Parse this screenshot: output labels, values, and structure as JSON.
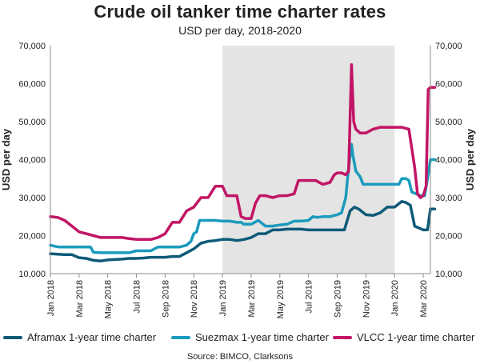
{
  "header": {
    "title": "Crude oil tanker time charter rates",
    "subtitle": "USD per day, 2018-2020"
  },
  "source": "Source: BIMCO, Clarksons",
  "chart_data": {
    "type": "line",
    "title": "Crude oil tanker time charter rates",
    "subtitle": "USD per day, 2018-2020",
    "ylabel_left": "USD per day",
    "ylabel_right": "USD per day",
    "ylim": [
      10000,
      70000
    ],
    "yticks": [
      10000,
      20000,
      30000,
      40000,
      50000,
      60000,
      70000
    ],
    "ytick_labels": [
      "10,000",
      "20,000",
      "30,000",
      "40,000",
      "50,000",
      "60,000",
      "70,000"
    ],
    "xlim": [
      0,
      26.5
    ],
    "xticks": [
      {
        "pos": 0,
        "label": "Jan 2018"
      },
      {
        "pos": 2,
        "label": "Mar 2018"
      },
      {
        "pos": 4,
        "label": "May 2018"
      },
      {
        "pos": 6,
        "label": "Jul 2018"
      },
      {
        "pos": 8,
        "label": "Sep 2018"
      },
      {
        "pos": 10,
        "label": "Nov 2018"
      },
      {
        "pos": 12,
        "label": "Jan 2019"
      },
      {
        "pos": 14,
        "label": "Mar 2019"
      },
      {
        "pos": 16,
        "label": "May 2019"
      },
      {
        "pos": 18,
        "label": "Jul 2019"
      },
      {
        "pos": 20,
        "label": "Sep 2019"
      },
      {
        "pos": 22,
        "label": "Nov 2019"
      },
      {
        "pos": 24,
        "label": "Jan 2020"
      },
      {
        "pos": 26,
        "label": "Mar 2020"
      }
    ],
    "shaded_region": {
      "from": 12,
      "to": 24,
      "color": "#e4e4e4"
    },
    "grid": false,
    "series": [
      {
        "name": "Aframax 1-year time charter",
        "color": "#0e5a78",
        "points": [
          [
            0,
            15250
          ],
          [
            0.5,
            15100
          ],
          [
            1,
            15000
          ],
          [
            1.5,
            15000
          ],
          [
            2,
            14200
          ],
          [
            2.5,
            14000
          ],
          [
            3,
            13500
          ],
          [
            3.5,
            13300
          ],
          [
            4,
            13600
          ],
          [
            4.5,
            13700
          ],
          [
            5,
            13800
          ],
          [
            5.5,
            14000
          ],
          [
            6,
            14000
          ],
          [
            6.5,
            14100
          ],
          [
            7,
            14300
          ],
          [
            7.5,
            14300
          ],
          [
            8,
            14300
          ],
          [
            8.5,
            14500
          ],
          [
            9,
            14500
          ],
          [
            9.5,
            15500
          ],
          [
            10,
            16500
          ],
          [
            10.5,
            18000
          ],
          [
            11,
            18500
          ],
          [
            11.5,
            18700
          ],
          [
            12,
            19000
          ],
          [
            12.5,
            19000
          ],
          [
            13,
            18700
          ],
          [
            13.5,
            19000
          ],
          [
            14,
            19500
          ],
          [
            14.5,
            20500
          ],
          [
            15,
            20500
          ],
          [
            15.5,
            21500
          ],
          [
            16,
            21500
          ],
          [
            16.5,
            21700
          ],
          [
            17,
            21700
          ],
          [
            17.5,
            21700
          ],
          [
            18,
            21500
          ],
          [
            18.5,
            21500
          ],
          [
            19,
            21500
          ],
          [
            19.5,
            21500
          ],
          [
            20,
            21500
          ],
          [
            20.5,
            21500
          ],
          [
            20.9,
            26500
          ],
          [
            21.2,
            27500
          ],
          [
            21.5,
            27000
          ],
          [
            22,
            25500
          ],
          [
            22.5,
            25300
          ],
          [
            23,
            26000
          ],
          [
            23.5,
            27500
          ],
          [
            24,
            27500
          ],
          [
            24.5,
            29000
          ],
          [
            24.8,
            28700
          ],
          [
            25.1,
            28000
          ],
          [
            25.4,
            22500
          ],
          [
            25.7,
            22000
          ],
          [
            26,
            21500
          ],
          [
            26.3,
            21500
          ],
          [
            26.5,
            27000
          ],
          [
            26.8,
            27000
          ]
        ]
      },
      {
        "name": "Suezmax 1-year time charter",
        "color": "#1a9bbd",
        "points": [
          [
            0,
            17500
          ],
          [
            0.3,
            17200
          ],
          [
            0.6,
            17000
          ],
          [
            1,
            17000
          ],
          [
            1.5,
            17000
          ],
          [
            2,
            17000
          ],
          [
            2.8,
            17000
          ],
          [
            3,
            15600
          ],
          [
            3.5,
            15500
          ],
          [
            4,
            15500
          ],
          [
            4.5,
            15500
          ],
          [
            5,
            15500
          ],
          [
            5.5,
            15500
          ],
          [
            6,
            16000
          ],
          [
            6.5,
            16000
          ],
          [
            7,
            16000
          ],
          [
            7.5,
            17000
          ],
          [
            8,
            17000
          ],
          [
            8.5,
            17000
          ],
          [
            9,
            17000
          ],
          [
            9.5,
            17500
          ],
          [
            9.8,
            18500
          ],
          [
            10,
            20500
          ],
          [
            10.2,
            21000
          ],
          [
            10.4,
            24000
          ],
          [
            10.8,
            24000
          ],
          [
            11,
            24000
          ],
          [
            11.5,
            24000
          ],
          [
            12,
            23800
          ],
          [
            12.5,
            23800
          ],
          [
            13,
            23500
          ],
          [
            13.3,
            23500
          ],
          [
            13.5,
            23000
          ],
          [
            14,
            23000
          ],
          [
            14.5,
            24000
          ],
          [
            15,
            22500
          ],
          [
            15.5,
            22500
          ],
          [
            16,
            22800
          ],
          [
            16.5,
            23000
          ],
          [
            17,
            23800
          ],
          [
            17.5,
            23800
          ],
          [
            18,
            24000
          ],
          [
            18.3,
            25000
          ],
          [
            18.6,
            24800
          ],
          [
            19,
            25000
          ],
          [
            19.5,
            25000
          ],
          [
            20,
            25500
          ],
          [
            20.3,
            26000
          ],
          [
            20.6,
            30000
          ],
          [
            20.8,
            38000
          ],
          [
            21,
            44000
          ],
          [
            21.1,
            41000
          ],
          [
            21.3,
            37000
          ],
          [
            21.6,
            35500
          ],
          [
            21.8,
            33500
          ],
          [
            22,
            33500
          ],
          [
            22.5,
            33500
          ],
          [
            23,
            33500
          ],
          [
            23.5,
            33500
          ],
          [
            24,
            33500
          ],
          [
            24.3,
            33500
          ],
          [
            24.5,
            35000
          ],
          [
            24.8,
            35000
          ],
          [
            25,
            34500
          ],
          [
            25.2,
            31500
          ],
          [
            25.5,
            31000
          ],
          [
            25.8,
            30500
          ],
          [
            26.1,
            30500
          ],
          [
            26.3,
            35000
          ],
          [
            26.5,
            40000
          ],
          [
            26.8,
            40000
          ]
        ]
      },
      {
        "name": "VLCC 1-year time charter",
        "color": "#c21565",
        "points": [
          [
            0,
            25000
          ],
          [
            0.5,
            24800
          ],
          [
            1,
            24000
          ],
          [
            1.5,
            22500
          ],
          [
            2,
            21000
          ],
          [
            2.5,
            20500
          ],
          [
            3,
            20000
          ],
          [
            3.5,
            19500
          ],
          [
            4,
            19500
          ],
          [
            4.5,
            19500
          ],
          [
            5,
            19500
          ],
          [
            5.5,
            19200
          ],
          [
            6,
            19000
          ],
          [
            6.5,
            19000
          ],
          [
            7,
            19000
          ],
          [
            7.5,
            19500
          ],
          [
            8,
            20500
          ],
          [
            8.5,
            23500
          ],
          [
            9,
            23500
          ],
          [
            9.5,
            26500
          ],
          [
            10,
            27500
          ],
          [
            10.5,
            30000
          ],
          [
            11,
            30000
          ],
          [
            11.5,
            33000
          ],
          [
            12,
            33000
          ],
          [
            12.3,
            30500
          ],
          [
            12.6,
            30500
          ],
          [
            13,
            30500
          ],
          [
            13.3,
            25000
          ],
          [
            13.6,
            24500
          ],
          [
            14,
            24500
          ],
          [
            14.3,
            28500
          ],
          [
            14.6,
            30500
          ],
          [
            15,
            30500
          ],
          [
            15.5,
            30000
          ],
          [
            16,
            30500
          ],
          [
            16.5,
            30500
          ],
          [
            17,
            31000
          ],
          [
            17.3,
            34500
          ],
          [
            17.6,
            34500
          ],
          [
            18,
            34500
          ],
          [
            18.5,
            34500
          ],
          [
            19,
            33500
          ],
          [
            19.5,
            34000
          ],
          [
            19.8,
            36000
          ],
          [
            20,
            36500
          ],
          [
            20.3,
            36500
          ],
          [
            20.6,
            36000
          ],
          [
            20.8,
            37000
          ],
          [
            21,
            65000
          ],
          [
            21.15,
            50000
          ],
          [
            21.3,
            48000
          ],
          [
            21.6,
            47000
          ],
          [
            22,
            47000
          ],
          [
            22.5,
            48000
          ],
          [
            23,
            48500
          ],
          [
            23.5,
            48500
          ],
          [
            24,
            48500
          ],
          [
            24.5,
            48500
          ],
          [
            25,
            48000
          ],
          [
            25.2,
            43000
          ],
          [
            25.4,
            38000
          ],
          [
            25.6,
            31000
          ],
          [
            25.8,
            30000
          ],
          [
            26,
            30500
          ],
          [
            26.2,
            33000
          ],
          [
            26.35,
            58500
          ],
          [
            26.5,
            59000
          ],
          [
            26.8,
            59000
          ]
        ]
      }
    ]
  }
}
